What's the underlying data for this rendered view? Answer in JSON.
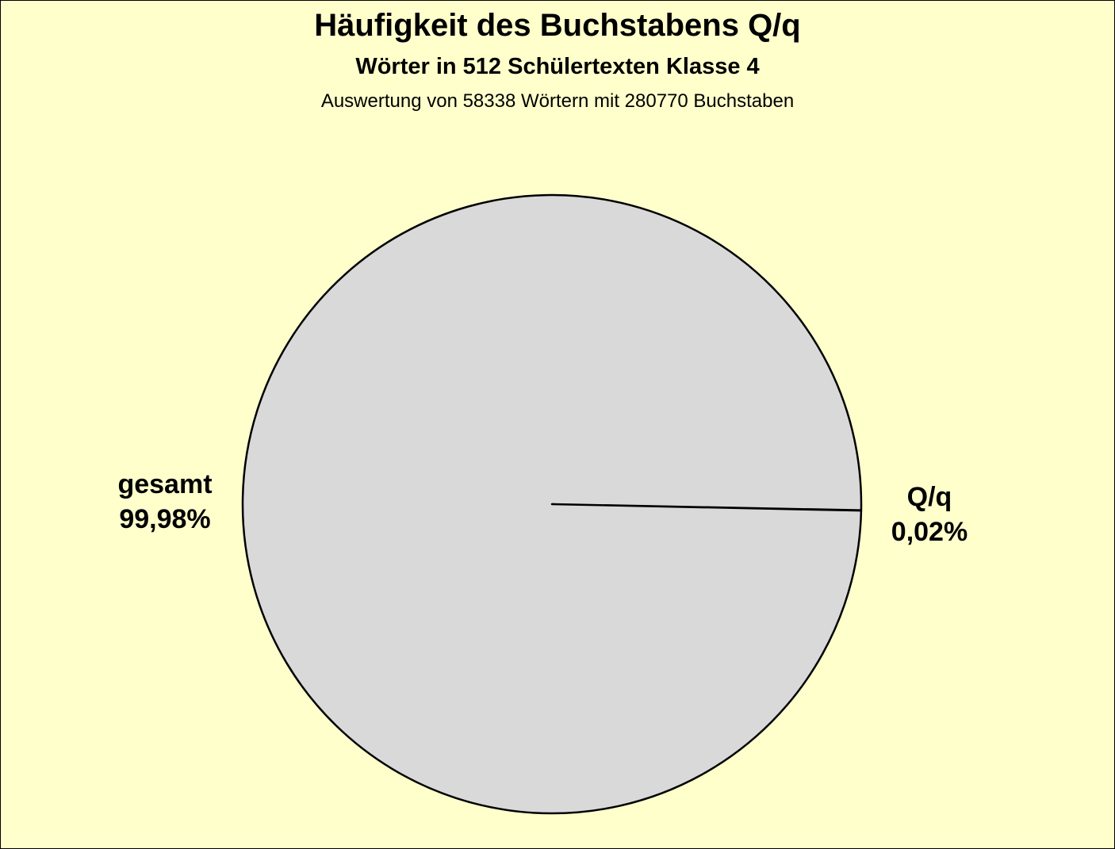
{
  "chart_data": {
    "type": "pie",
    "title": "Häufigkeit des Buchstabens Q/q",
    "subtitle": "Wörter in 512 Schülertexten Klasse 4",
    "note": "Auswertung von 58338 Wörtern mit 280770 Buchstaben",
    "slices": [
      {
        "name": "Q/q",
        "value": 0.02,
        "label": "0,02%",
        "color": "#D9D9D9"
      },
      {
        "name": "gesamt",
        "value": 99.98,
        "label": "99,98%",
        "color": "#D9D9D9"
      }
    ],
    "legend": "none",
    "background_color": "#FFFFCC",
    "border_color": "#000000"
  }
}
